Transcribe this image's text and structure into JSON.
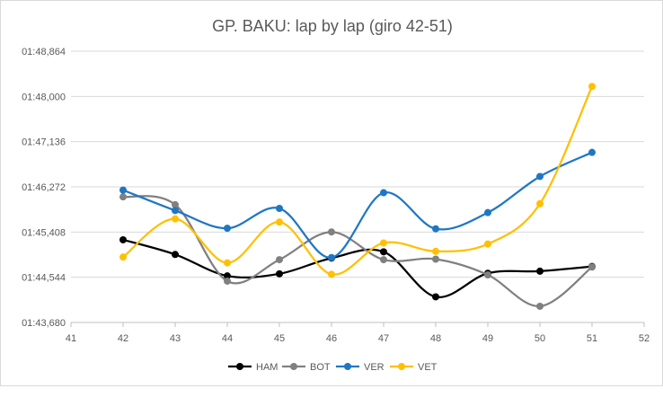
{
  "chart_data": {
    "type": "line",
    "title": "GP. BAKU: lap by lap (giro 42-51)",
    "x_ticks": [
      "41",
      "42",
      "43",
      "44",
      "45",
      "46",
      "47",
      "48",
      "49",
      "50",
      "51",
      "52"
    ],
    "x_range": [
      41,
      52
    ],
    "y_ticks": [
      "01:43,680",
      "01:44,544",
      "01:45,408",
      "01:46,272",
      "01:47,136",
      "01:48,000",
      "01:48,864"
    ],
    "y_range_seconds": [
      103.68,
      108.864
    ],
    "grid": "horizontal",
    "smoothed": true,
    "legend_position": "bottom",
    "x": [
      42,
      43,
      44,
      45,
      46,
      47,
      48,
      49,
      50,
      51
    ],
    "series": [
      {
        "name": "HAM",
        "color": "#000000",
        "values_seconds": [
          105.26,
          104.98,
          104.57,
          104.61,
          104.91,
          105.03,
          104.17,
          104.62,
          104.66,
          104.75
        ]
      },
      {
        "name": "BOT",
        "color": "#808080",
        "values_seconds": [
          106.08,
          105.93,
          104.47,
          104.88,
          105.41,
          104.88,
          104.89,
          104.59,
          103.99,
          104.74
        ]
      },
      {
        "name": "VER",
        "color": "#1f77c4",
        "values_seconds": [
          106.21,
          105.82,
          105.48,
          105.86,
          104.92,
          106.16,
          105.47,
          105.78,
          106.47,
          106.93
        ]
      },
      {
        "name": "VET",
        "color": "#ffc000",
        "values_seconds": [
          104.93,
          105.66,
          104.82,
          105.6,
          104.6,
          105.2,
          105.04,
          105.18,
          105.95,
          108.19
        ]
      }
    ]
  }
}
